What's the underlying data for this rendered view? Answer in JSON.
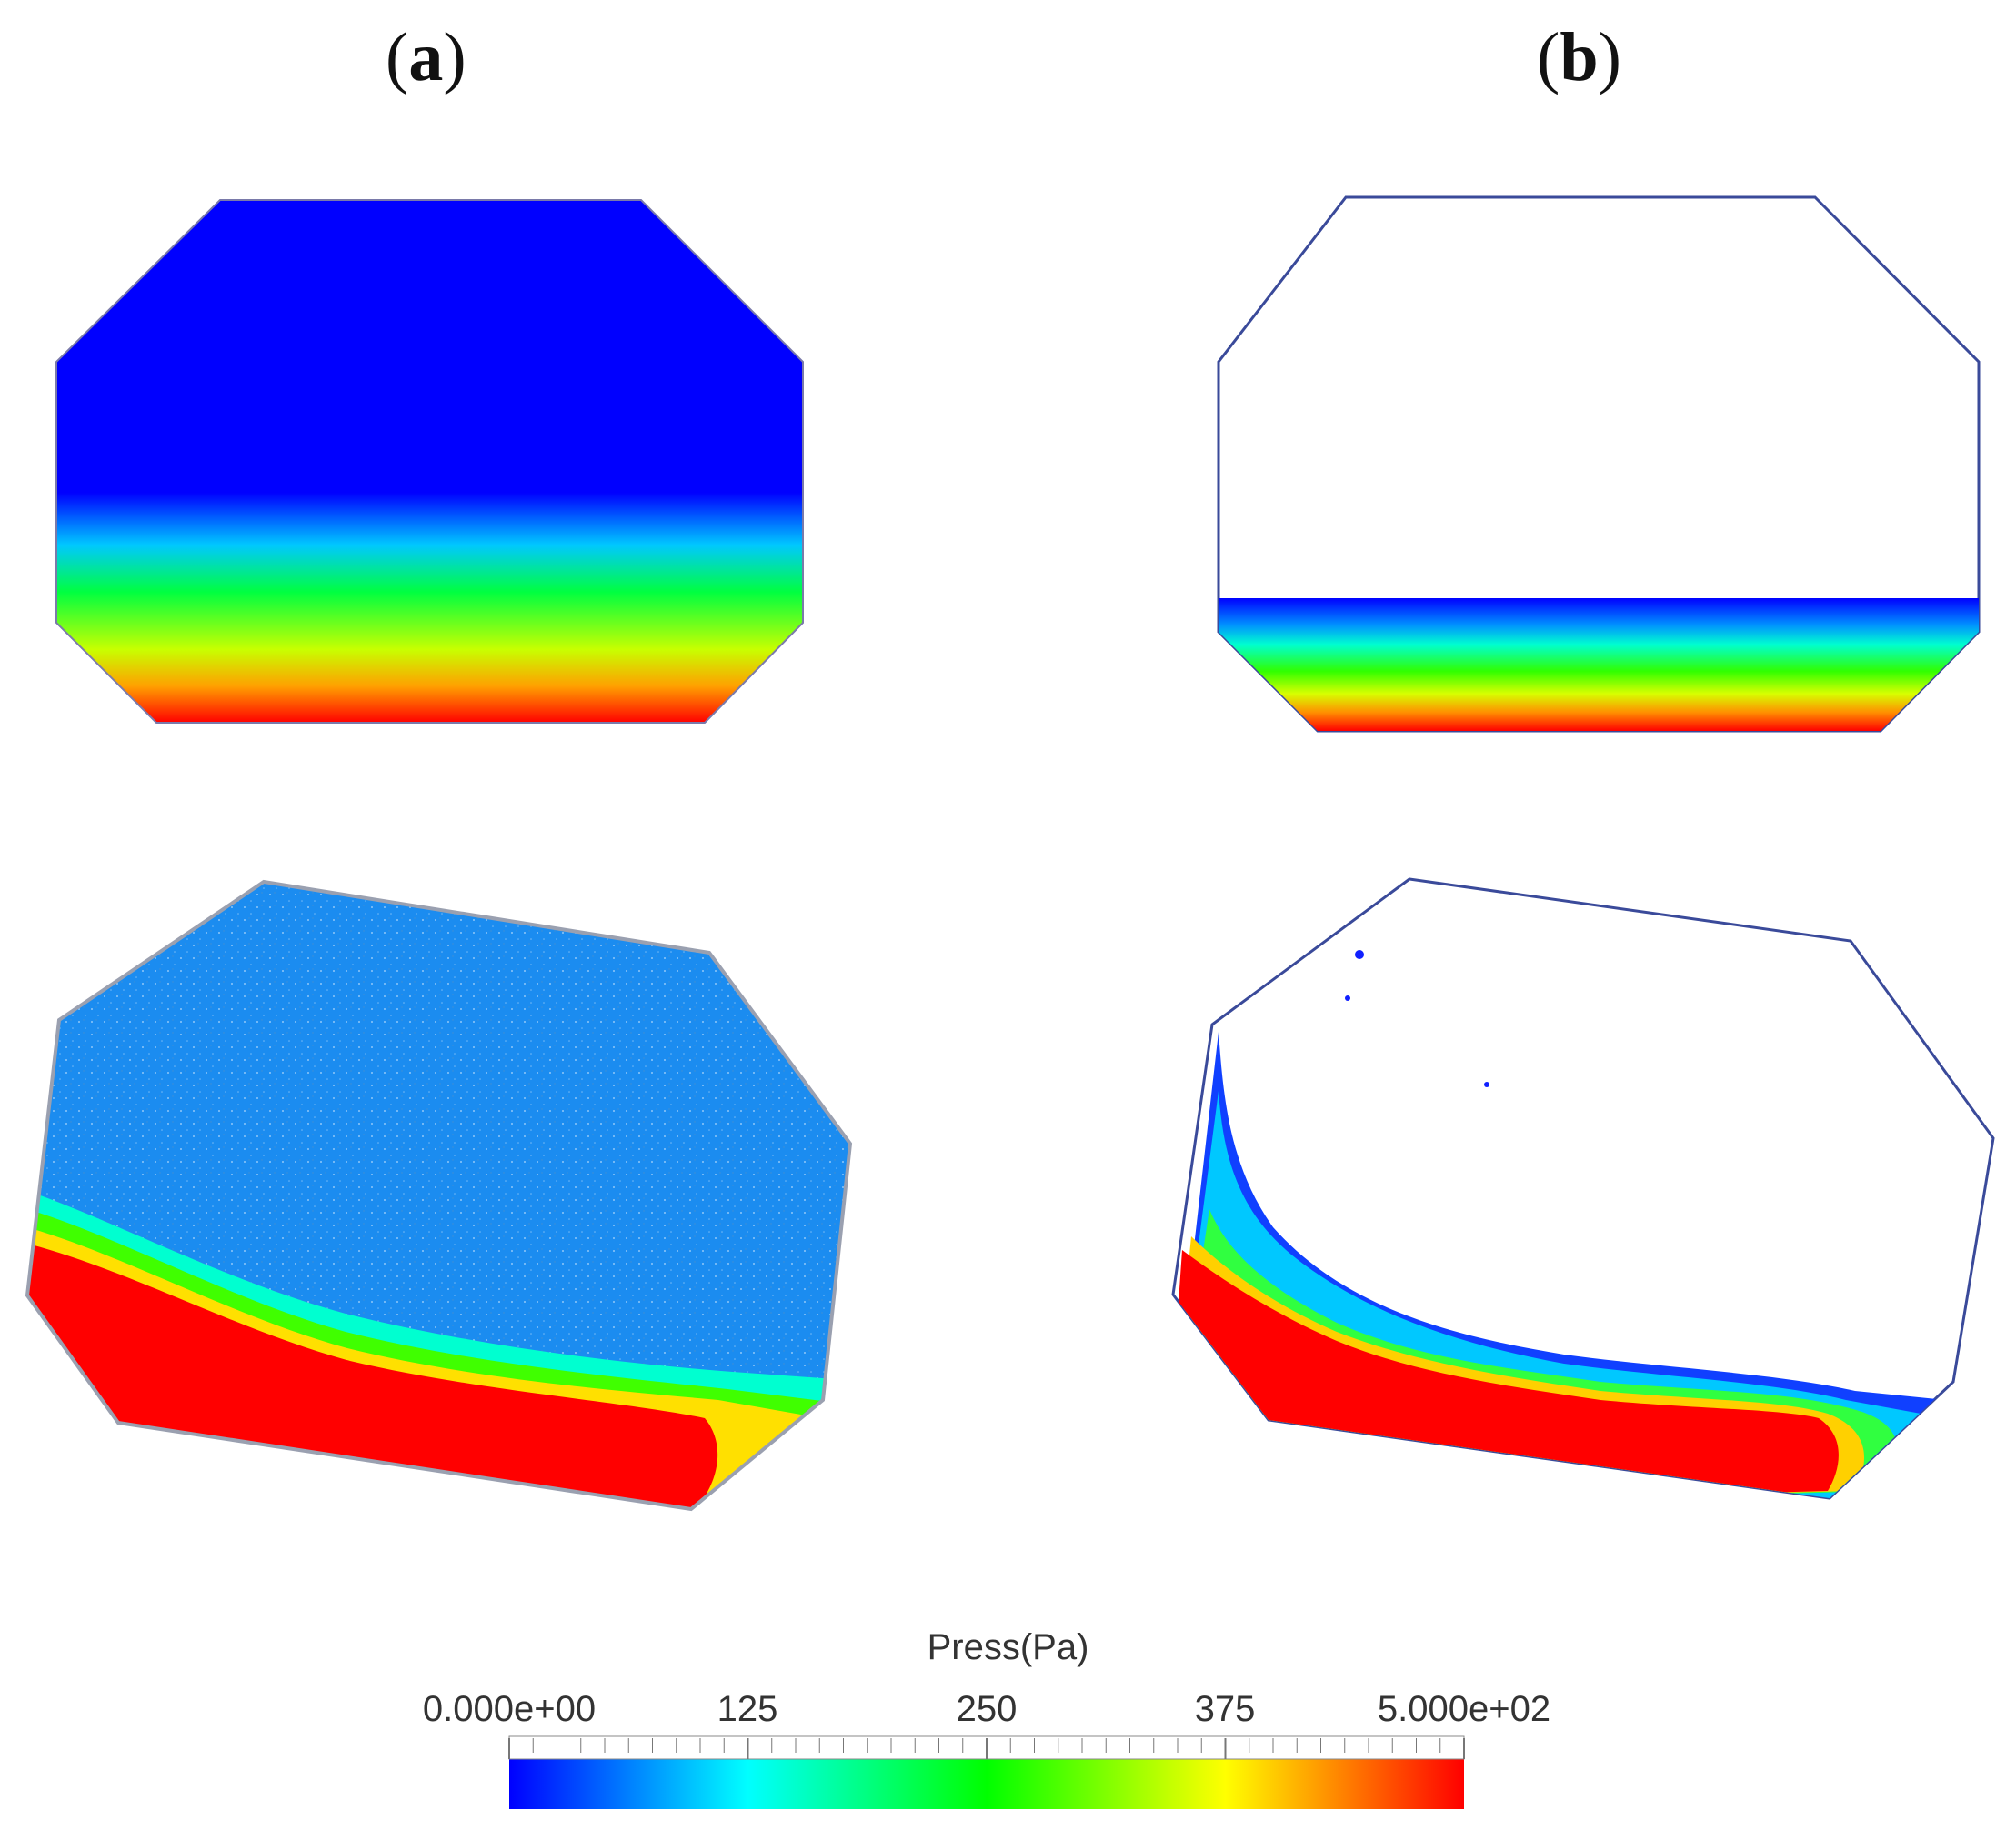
{
  "panels": [
    {
      "label_open": "(",
      "label_letter": "a",
      "label_close": ")"
    },
    {
      "label_open": "(",
      "label_letter": "b",
      "label_close": ")"
    }
  ],
  "colorbar": {
    "title": "Press(Pa)",
    "tick_labels": [
      "0.000e+00",
      "125",
      "250",
      "375",
      "5.000e+02"
    ],
    "min": 0,
    "max": 500,
    "colors": [
      "#0000ff",
      "#00ffff",
      "#00ff00",
      "#ffff00",
      "#ff0000"
    ]
  }
}
